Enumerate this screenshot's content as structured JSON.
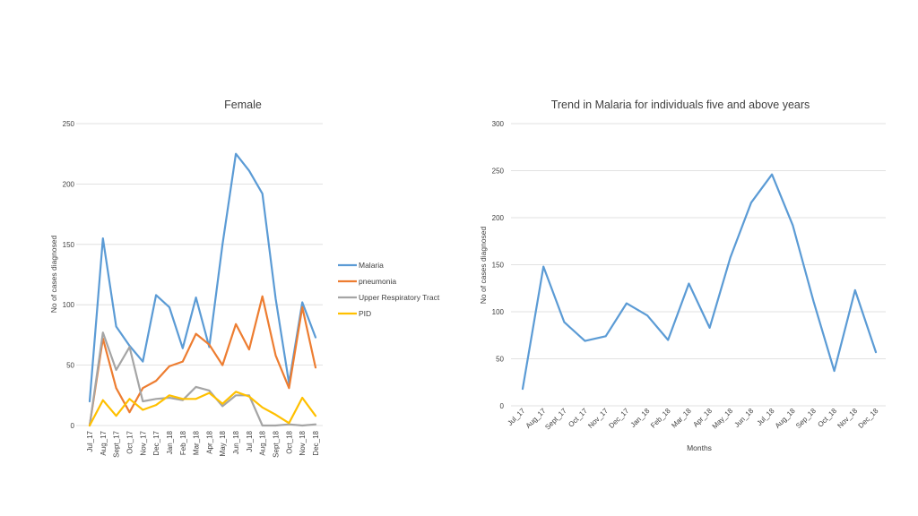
{
  "chart_data": [
    {
      "type": "line",
      "title": "Female",
      "xlabel": "",
      "ylabel": "No of cases diagnosed",
      "ylim": [
        0,
        250
      ],
      "yticks": [
        0,
        50,
        100,
        150,
        200,
        250
      ],
      "grid": true,
      "legend_position": "right",
      "categories": [
        "Jul_17",
        "Aug_17",
        "Sept_17",
        "Oct_17",
        "Nov_17",
        "Dec_17",
        "Jan_18",
        "Feb_18",
        "Mar_18",
        "Apr_18",
        "May_18",
        "Jun_18",
        "Jul_18",
        "Aug_18",
        "Sept_18",
        "Oct_18",
        "Nov_18",
        "Dec_18"
      ],
      "series": [
        {
          "name": "Malaria",
          "color": "#5b9bd5",
          "values": [
            20,
            155,
            82,
            66,
            53,
            108,
            98,
            64,
            106,
            65,
            150,
            225,
            211,
            192,
            105,
            35,
            102,
            73
          ]
        },
        {
          "name": "pneumonia",
          "color": "#ed7d31",
          "values": [
            0,
            72,
            31,
            11,
            31,
            37,
            49,
            53,
            76,
            67,
            50,
            84,
            63,
            107,
            58,
            31,
            98,
            48
          ]
        },
        {
          "name": "Upper Respiratory Tract",
          "color": "#a5a5a5",
          "values": [
            0,
            77,
            46,
            65,
            20,
            22,
            23,
            21,
            32,
            29,
            16,
            25,
            25,
            0,
            0,
            1,
            0,
            1
          ]
        },
        {
          "name": "PID",
          "color": "#ffc000",
          "values": [
            0,
            21,
            8,
            22,
            13,
            17,
            25,
            22,
            22,
            27,
            18,
            28,
            24,
            15,
            9,
            2,
            23,
            8
          ]
        }
      ]
    },
    {
      "type": "line",
      "title": "Trend in Malaria for individuals five and above years",
      "xlabel": "Months",
      "ylabel": "No of cases diagnosed",
      "ylim": [
        0,
        300
      ],
      "yticks": [
        0,
        50,
        100,
        150,
        200,
        250,
        300
      ],
      "grid": true,
      "categories": [
        "Jul_17",
        "Aug_17",
        "Sept_17",
        "Oct_17",
        "Nov_17",
        "Dec_17",
        "Jan_18",
        "Feb_18",
        "Mar_18",
        "Apr_18",
        "May_18",
        "Jun_18",
        "Jul_18",
        "Aug_18",
        "Sep_18",
        "Oct_18",
        "Nov_18",
        "Dec_18"
      ],
      "series": [
        {
          "color": "#5b9bd5",
          "values": [
            18,
            148,
            89,
            69,
            74,
            109,
            96,
            70,
            130,
            83,
            158,
            216,
            246,
            192,
            111,
            37,
            123,
            57
          ]
        }
      ]
    }
  ]
}
